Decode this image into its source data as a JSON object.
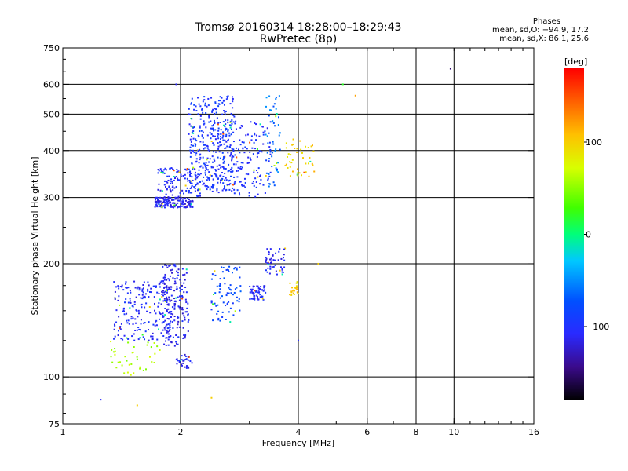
{
  "title_line1": "Tromsø 20160314 18:28:00–18:29:43",
  "title_line2": "RwPretec (8p)",
  "phases": {
    "header": "Phases",
    "line_o": "mean, sd,O: −94.9, 17.2",
    "line_x": "mean, sd,X:  86.1, 25.6"
  },
  "colorbar": {
    "label": "[deg]",
    "min": -180,
    "max": 180,
    "ticks": [
      {
        "value": 100,
        "label": "100"
      },
      {
        "value": 0,
        "label": "0"
      },
      {
        "value": -100,
        "label": "−100"
      }
    ]
  },
  "chart_data": {
    "type": "scatter",
    "title": "Tromsø 20160314 18:28:00–18:29:43 RwPretec (8p)",
    "xlabel": "Frequency [MHz]",
    "ylabel": "Stationary phase Virtual Height [km]",
    "x_scale": "log",
    "y_scale": "log",
    "xlim": [
      1,
      16
    ],
    "ylim": [
      75,
      750
    ],
    "grid": true,
    "x_ticks": [
      {
        "value": 1,
        "label": "1"
      },
      {
        "value": 2,
        "label": "2"
      },
      {
        "value": 4,
        "label": "4"
      },
      {
        "value": 6,
        "label": "6"
      },
      {
        "value": 8,
        "label": "8"
      },
      {
        "value": 10,
        "label": "10"
      },
      {
        "value": 16,
        "label": "16"
      }
    ],
    "x_gridlines": [
      2,
      4,
      6,
      8,
      10
    ],
    "y_ticks": [
      {
        "value": 75,
        "label": "75"
      },
      {
        "value": 100,
        "label": "100"
      },
      {
        "value": 200,
        "label": "200"
      },
      {
        "value": 300,
        "label": "300"
      },
      {
        "value": 400,
        "label": "400"
      },
      {
        "value": 500,
        "label": "500"
      },
      {
        "value": 600,
        "label": "600"
      },
      {
        "value": 750,
        "label": "750"
      }
    ],
    "y_gridlines": [
      100,
      200,
      300,
      400,
      500,
      600
    ],
    "clusters": [
      {
        "f": [
          1.72,
          2.15
        ],
        "h": [
          282,
          300
        ],
        "phase": -110,
        "n": 150
      },
      {
        "f": [
          1.75,
          2.25
        ],
        "h": [
          300,
          360
        ],
        "phase": -105,
        "n": 120
      },
      {
        "f": [
          2.1,
          2.75
        ],
        "h": [
          310,
          560
        ],
        "phase": -95,
        "n": 320
      },
      {
        "f": [
          2.4,
          3.4
        ],
        "h": [
          300,
          480
        ],
        "phase": -100,
        "n": 200
      },
      {
        "f": [
          3.3,
          3.6
        ],
        "h": [
          320,
          560
        ],
        "phase": -60,
        "n": 50
      },
      {
        "f": [
          3.7,
          4.4
        ],
        "h": [
          340,
          430
        ],
        "phase": 100,
        "n": 45
      },
      {
        "f": [
          1.35,
          1.9
        ],
        "h": [
          125,
          180
        ],
        "phase": -105,
        "n": 200
      },
      {
        "f": [
          1.8,
          2.1
        ],
        "h": [
          120,
          200
        ],
        "phase": -110,
        "n": 190
      },
      {
        "f": [
          2.4,
          2.85
        ],
        "h": [
          140,
          200
        ],
        "phase": -80,
        "n": 80
      },
      {
        "f": [
          3.0,
          3.3
        ],
        "h": [
          160,
          175
        ],
        "phase": -105,
        "n": 60
      },
      {
        "f": [
          3.3,
          3.7
        ],
        "h": [
          185,
          220
        ],
        "phase": -110,
        "n": 50
      },
      {
        "f": [
          3.8,
          4.0
        ],
        "h": [
          165,
          180
        ],
        "phase": 100,
        "n": 20
      },
      {
        "f": [
          1.3,
          1.8
        ],
        "h": [
          100,
          125
        ],
        "phase": 60,
        "n": 40
      },
      {
        "f": [
          1.95,
          2.15
        ],
        "h": [
          105,
          115
        ],
        "phase": -110,
        "n": 30
      }
    ],
    "points": [
      {
        "f": 9.8,
        "h": 660,
        "phase": -150
      },
      {
        "f": 1.25,
        "h": 87,
        "phase": -110
      },
      {
        "f": 1.55,
        "h": 84,
        "phase": 100
      },
      {
        "f": 2.4,
        "h": 88,
        "phase": 100
      },
      {
        "f": 4.0,
        "h": 125,
        "phase": -110
      },
      {
        "f": 4.5,
        "h": 200,
        "phase": 100
      },
      {
        "f": 5.6,
        "h": 560,
        "phase": 120
      },
      {
        "f": 5.2,
        "h": 600,
        "phase": 20
      },
      {
        "f": 2.1,
        "h": 500,
        "phase": -110
      },
      {
        "f": 1.95,
        "h": 600,
        "phase": -110
      }
    ]
  }
}
